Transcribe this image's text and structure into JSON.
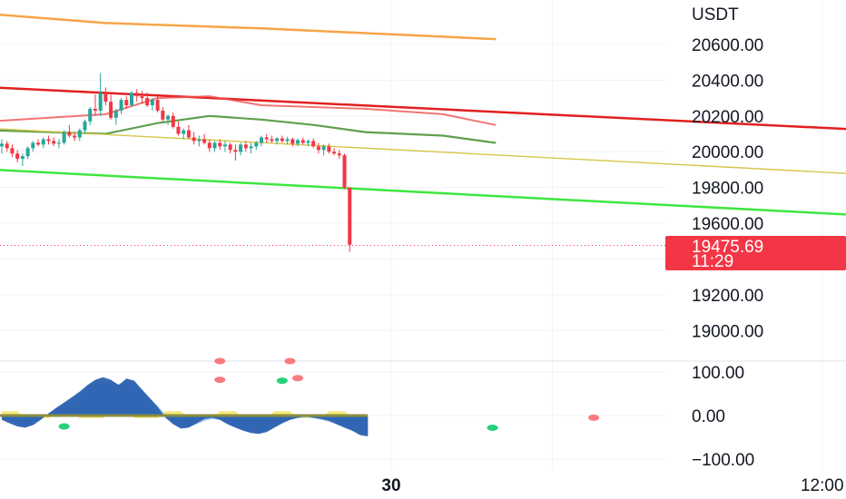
{
  "chart_data": {
    "type": "candlestick",
    "currency": "USDT",
    "price_axis": {
      "range": [
        19000,
        20700
      ],
      "ticks": [
        "20600.00",
        "20400.00",
        "20200.00",
        "20000.00",
        "19800.00",
        "19600.00",
        "19200.00",
        "19000.00"
      ]
    },
    "last_price": {
      "value": "19475.69",
      "countdown": "11:29",
      "color": "#f23645"
    },
    "time_axis": {
      "labels": [
        {
          "text": "30",
          "bold": true,
          "t": 75
        },
        {
          "text": "12:00",
          "bold": false,
          "t": 158
        }
      ]
    },
    "candles": [
      [
        20030,
        20070,
        19990,
        20045
      ],
      [
        20045,
        20060,
        20000,
        20020
      ],
      [
        20020,
        20040,
        19970,
        19990
      ],
      [
        19990,
        20010,
        19940,
        19960
      ],
      [
        19960,
        19990,
        19920,
        19975
      ],
      [
        19975,
        20030,
        19960,
        20020
      ],
      [
        20020,
        20060,
        20000,
        20050
      ],
      [
        20050,
        20070,
        20030,
        20040
      ],
      [
        20040,
        20080,
        20020,
        20070
      ],
      [
        20070,
        20090,
        20040,
        20060
      ],
      [
        20060,
        20080,
        20030,
        20045
      ],
      [
        20045,
        20070,
        20020,
        20050
      ],
      [
        20050,
        20120,
        20040,
        20110
      ],
      [
        20110,
        20150,
        20080,
        20090
      ],
      [
        20090,
        20110,
        20060,
        20080
      ],
      [
        20080,
        20130,
        20060,
        20120
      ],
      [
        20120,
        20180,
        20100,
        20170
      ],
      [
        20170,
        20250,
        20150,
        20240
      ],
      [
        20240,
        20320,
        20200,
        20230
      ],
      [
        20230,
        20440,
        20200,
        20330
      ],
      [
        20330,
        20360,
        20260,
        20280
      ],
      [
        20280,
        20320,
        20180,
        20190
      ],
      [
        20190,
        20240,
        20150,
        20230
      ],
      [
        20230,
        20300,
        20210,
        20290
      ],
      [
        20290,
        20310,
        20240,
        20260
      ],
      [
        20260,
        20340,
        20250,
        20330
      ],
      [
        20330,
        20350,
        20280,
        20310
      ],
      [
        20310,
        20340,
        20270,
        20300
      ],
      [
        20300,
        20330,
        20250,
        20260
      ],
      [
        20260,
        20300,
        20230,
        20290
      ],
      [
        20290,
        20310,
        20220,
        20230
      ],
      [
        20230,
        20250,
        20170,
        20180
      ],
      [
        20180,
        20210,
        20150,
        20200
      ],
      [
        20200,
        20220,
        20130,
        20140
      ],
      [
        20140,
        20170,
        20090,
        20100
      ],
      [
        20100,
        20130,
        20070,
        20120
      ],
      [
        20120,
        20150,
        20070,
        20080
      ],
      [
        20080,
        20110,
        20040,
        20060
      ],
      [
        20060,
        20090,
        20030,
        20070
      ],
      [
        20070,
        20100,
        20040,
        20050
      ],
      [
        20050,
        20070,
        20000,
        20020
      ],
      [
        20020,
        20060,
        20000,
        20050
      ],
      [
        20050,
        20070,
        20010,
        20030
      ],
      [
        20030,
        20060,
        20000,
        20040
      ],
      [
        20040,
        20050,
        19990,
        20010
      ],
      [
        20010,
        20040,
        19950,
        20000
      ],
      [
        20000,
        20050,
        19980,
        20040
      ],
      [
        20040,
        20060,
        20000,
        20020
      ],
      [
        20020,
        20050,
        19990,
        20030
      ],
      [
        20030,
        20060,
        20010,
        20050
      ],
      [
        20050,
        20090,
        20030,
        20080
      ],
      [
        20080,
        20100,
        20050,
        20070
      ],
      [
        20070,
        20090,
        20050,
        20060
      ],
      [
        20060,
        20080,
        20040,
        20075
      ],
      [
        20075,
        20090,
        20050,
        20060
      ],
      [
        20060,
        20085,
        20040,
        20070
      ],
      [
        20070,
        20080,
        20030,
        20045
      ],
      [
        20045,
        20075,
        20030,
        20065
      ],
      [
        20065,
        20080,
        20040,
        20050
      ],
      [
        20050,
        20070,
        20030,
        20060
      ],
      [
        20060,
        20075,
        20020,
        20030
      ],
      [
        20030,
        20050,
        19990,
        20010
      ],
      [
        20010,
        20040,
        19980,
        20030
      ],
      [
        20030,
        20045,
        19990,
        20000
      ],
      [
        20000,
        20020,
        19980,
        19990
      ],
      [
        19990,
        20010,
        19960,
        19980
      ],
      [
        19980,
        19990,
        19790,
        19800
      ],
      [
        19800,
        19800,
        19440,
        19480
      ]
    ],
    "overlays": [
      {
        "name": "orange",
        "color": "#f6a548",
        "width": 2.5,
        "points": [
          [
            -2,
            20770
          ],
          [
            20,
            20720
          ],
          [
            50,
            20690
          ],
          [
            80,
            20650
          ],
          [
            95,
            20630
          ]
        ]
      },
      {
        "name": "red-band",
        "color": "#e21f1f",
        "width": 2.5,
        "points": [
          [
            -2,
            20360
          ],
          [
            175,
            20110
          ]
        ]
      },
      {
        "name": "red-ma",
        "color": "#ef5350",
        "width": 2,
        "opacity": 0.8,
        "points": [
          [
            -2,
            20170
          ],
          [
            20,
            20210
          ],
          [
            30,
            20300
          ],
          [
            40,
            20310
          ],
          [
            50,
            20260
          ],
          [
            60,
            20250
          ],
          [
            70,
            20240
          ],
          [
            85,
            20210
          ],
          [
            95,
            20150
          ]
        ]
      },
      {
        "name": "green-ma",
        "color": "#5fa04e",
        "width": 2.2,
        "points": [
          [
            -2,
            20120
          ],
          [
            20,
            20100
          ],
          [
            30,
            20160
          ],
          [
            40,
            20200
          ],
          [
            50,
            20180
          ],
          [
            60,
            20150
          ],
          [
            70,
            20110
          ],
          [
            85,
            20090
          ],
          [
            95,
            20050
          ]
        ]
      },
      {
        "name": "yellow-band",
        "color": "#d6c64a",
        "width": 1.4,
        "points": [
          [
            -2,
            20130
          ],
          [
            175,
            19860
          ]
        ]
      },
      {
        "name": "green-band",
        "color": "#3ee640",
        "width": 2.5,
        "points": [
          [
            -2,
            19900
          ],
          [
            175,
            19630
          ]
        ]
      }
    ],
    "oscillator": {
      "range": [
        -100,
        100
      ],
      "ticks": [
        "100.00",
        "0.00",
        "−100.00"
      ],
      "values": [
        -10,
        -18,
        -25,
        -28,
        -22,
        -10,
        5,
        18,
        30,
        42,
        55,
        70,
        82,
        88,
        82,
        70,
        85,
        80,
        60,
        40,
        20,
        -5,
        -20,
        -30,
        -28,
        -18,
        -8,
        -5,
        -10,
        -20,
        -28,
        -35,
        -40,
        -42,
        -38,
        -28,
        -18,
        -10,
        -5,
        -2,
        -5,
        -8,
        -12,
        -20,
        -28,
        -35,
        -45,
        -48
      ],
      "signal": [
        -5,
        -12,
        -18,
        -22,
        -18,
        -8,
        5,
        14,
        24,
        34,
        46,
        60,
        72,
        78,
        78,
        72,
        78,
        74,
        58,
        40,
        22,
        2,
        -14,
        -24,
        -26,
        -20,
        -12,
        -8,
        -10,
        -18,
        -26,
        -32,
        -36,
        -38,
        -34,
        -26,
        -16,
        -10,
        -6,
        -4,
        -6,
        -10,
        -14,
        -20,
        -26,
        -32,
        -40,
        -44
      ],
      "markers": [
        {
          "t": 8,
          "v": -25,
          "color": "#26d07c"
        },
        {
          "t": 28,
          "v": 82,
          "color": "#f77c80"
        },
        {
          "t": 36,
          "v": 80,
          "color": "#26d07c"
        },
        {
          "t": 38,
          "v": 86,
          "color": "#f77c80"
        },
        {
          "t": 63,
          "v": -28,
          "color": "#26d07c"
        },
        {
          "t": 76,
          "v": -5,
          "color": "#f77c80"
        },
        {
          "t": 28,
          "v": 125,
          "color": "#f77c80"
        },
        {
          "t": 37,
          "v": 125,
          "color": "#f77c80"
        }
      ]
    },
    "colors": {
      "up": "#26a69a",
      "down": "#f23645",
      "grid": "#f0f3fa",
      "separator": "#e0e3eb",
      "osc_main": "#2a61b0",
      "osc_light": "#90bff0",
      "osc_yellow": "#f5e56a",
      "osc_olive": "#8b8e3f"
    }
  }
}
